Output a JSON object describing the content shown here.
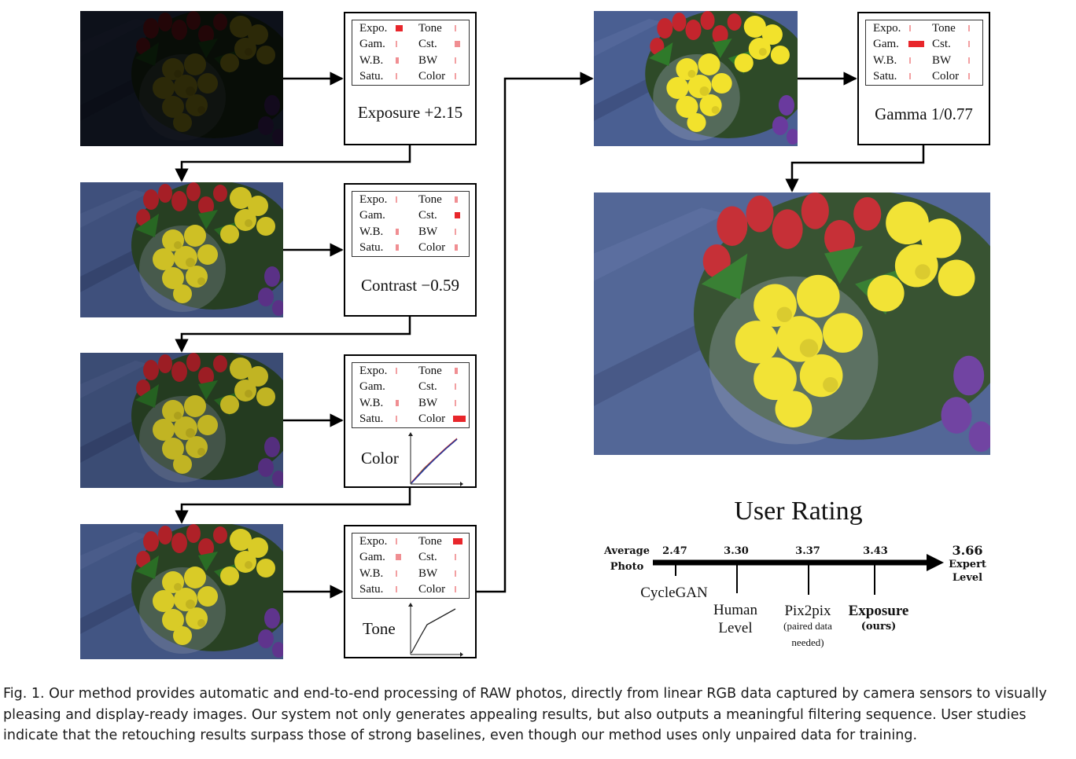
{
  "steps": [
    {
      "label": "Exposure +2.15",
      "filters": {
        "expo": "Expo.",
        "tone": "Tone",
        "gam": "Gam.",
        "cst": "Cst.",
        "wb": "W.B.",
        "bw": "BW",
        "satu": "Satu.",
        "color": "Color"
      }
    },
    {
      "label": "Contrast −0.59"
    },
    {
      "label": "Color"
    },
    {
      "label": "Tone"
    },
    {
      "label": "Gamma 1/0.77"
    }
  ],
  "filter_labels": {
    "expo": "Expo.",
    "tone": "Tone",
    "gam": "Gam.",
    "cst": "Cst.",
    "wb": "W.B.",
    "bw": "BW",
    "satu": "Satu.",
    "color": "Color"
  },
  "user_rating": {
    "title": "User Rating",
    "start_label_1": "Average",
    "start_label_2": "Photo",
    "end_score": "3.66",
    "end_label_1": "Expert",
    "end_label_2": "Level",
    "methods": [
      {
        "score": "2.47",
        "name_1": "CycleGAN"
      },
      {
        "score": "3.30",
        "name_1": "Human",
        "name_2": "Level"
      },
      {
        "score": "3.37",
        "name_1": "Pix2pix",
        "sub_1": "(paired data",
        "sub_2": "needed)"
      },
      {
        "score": "3.43",
        "name_1": "Exposure",
        "sub_1": "(ours)"
      }
    ]
  },
  "caption": "Fig. 1.  Our method provides automatic and end-to-end processing of RAW photos, directly from linear RGB data captured by camera sensors to visually pleasing and display-ready images. Our system not only generates appealing results, but also outputs a meaningful filtering sequence. User studies indicate that the retouching results surpass those of strong baselines, even though our method uses only unpaired data for training."
}
